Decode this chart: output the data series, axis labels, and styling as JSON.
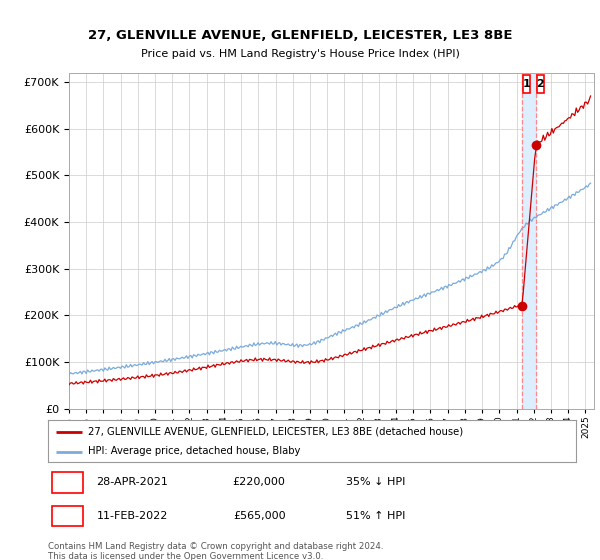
{
  "title1": "27, GLENVILLE AVENUE, GLENFIELD, LEICESTER, LE3 8BE",
  "title2": "Price paid vs. HM Land Registry's House Price Index (HPI)",
  "legend_line1": "27, GLENVILLE AVENUE, GLENFIELD, LEICESTER, LE3 8BE (detached house)",
  "legend_line2": "HPI: Average price, detached house, Blaby",
  "transaction1_date": "28-APR-2021",
  "transaction1_price": "£220,000",
  "transaction1_pct": "35% ↓ HPI",
  "transaction2_date": "11-FEB-2022",
  "transaction2_price": "£565,000",
  "transaction2_pct": "51% ↑ HPI",
  "footer": "Contains HM Land Registry data © Crown copyright and database right 2024.\nThis data is licensed under the Open Government Licence v3.0.",
  "hpi_color": "#7aabdc",
  "price_color": "#cc0000",
  "marker_color": "#cc0000",
  "highlight_color": "#ddeeff",
  "vline_color": "#ff8888",
  "transaction1_year": 2021.32,
  "transaction2_year": 2022.12,
  "transaction1_value": 220000,
  "transaction2_value": 565000,
  "ylim_max": 720000,
  "background_color": "#ffffff",
  "grid_color": "#cccccc"
}
